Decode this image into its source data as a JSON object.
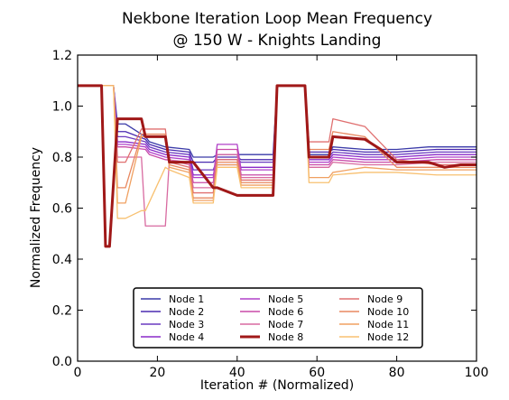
{
  "chart_data": {
    "type": "line",
    "title_line1": "Nekbone Iteration Loop Mean Frequency",
    "title_line2": "@ 150 W - Knights Landing",
    "xlabel": "Iteration # (Normalized)",
    "ylabel": "Normalized Frequency",
    "xlim": [
      0,
      100
    ],
    "ylim": [
      0.0,
      1.2
    ],
    "xticks": [
      0,
      20,
      40,
      60,
      80,
      100
    ],
    "yticks": [
      0.0,
      0.2,
      0.4,
      0.6,
      0.8,
      1.0,
      1.2
    ],
    "ytick_labels": [
      "0.0",
      "0.2",
      "0.4",
      "0.6",
      "0.8",
      "1.0",
      "1.2"
    ],
    "grid": false,
    "legend_position": "lower-center",
    "series": [
      {
        "name": "Node 1",
        "color": "#3a3aa8",
        "x": [
          0,
          9,
          10,
          12,
          17,
          18,
          22,
          28,
          29,
          34,
          35,
          40,
          41,
          45,
          49,
          50,
          57,
          58,
          63,
          64,
          72,
          80,
          88,
          96,
          100
        ],
        "y": [
          1.08,
          1.08,
          0.93,
          0.93,
          0.88,
          0.86,
          0.84,
          0.83,
          0.8,
          0.8,
          0.81,
          0.81,
          0.81,
          0.81,
          0.81,
          1.08,
          1.08,
          0.81,
          0.81,
          0.84,
          0.83,
          0.83,
          0.84,
          0.84,
          0.84
        ]
      },
      {
        "name": "Node 2",
        "color": "#4a2ab0",
        "x": [
          0,
          9,
          10,
          12,
          17,
          18,
          22,
          28,
          29,
          34,
          35,
          40,
          41,
          49,
          50,
          57,
          58,
          63,
          64,
          72,
          80,
          90,
          100
        ],
        "y": [
          1.08,
          1.08,
          0.9,
          0.9,
          0.87,
          0.85,
          0.83,
          0.82,
          0.78,
          0.78,
          0.8,
          0.8,
          0.79,
          0.79,
          1.08,
          1.08,
          0.82,
          0.82,
          0.83,
          0.82,
          0.82,
          0.83,
          0.83
        ]
      },
      {
        "name": "Node 3",
        "color": "#6a3ac0",
        "x": [
          0,
          9,
          10,
          12,
          17,
          18,
          22,
          28,
          29,
          34,
          35,
          40,
          41,
          49,
          50,
          57,
          58,
          63,
          64,
          72,
          80,
          90,
          100
        ],
        "y": [
          1.08,
          1.08,
          0.88,
          0.88,
          0.86,
          0.84,
          0.82,
          0.81,
          0.75,
          0.75,
          0.79,
          0.79,
          0.78,
          0.78,
          1.08,
          1.08,
          0.8,
          0.8,
          0.82,
          0.81,
          0.81,
          0.82,
          0.82
        ]
      },
      {
        "name": "Node 4",
        "color": "#8a2ac8",
        "x": [
          0,
          9,
          10,
          12,
          17,
          18,
          22,
          28,
          29,
          34,
          35,
          40,
          41,
          49,
          50,
          57,
          58,
          63,
          64,
          72,
          80,
          90,
          100
        ],
        "y": [
          1.08,
          1.08,
          0.86,
          0.86,
          0.85,
          0.83,
          0.81,
          0.8,
          0.73,
          0.73,
          0.77,
          0.77,
          0.76,
          0.76,
          1.08,
          1.08,
          0.79,
          0.79,
          0.81,
          0.8,
          0.8,
          0.81,
          0.81
        ]
      },
      {
        "name": "Node 5",
        "color": "#b040c8",
        "x": [
          0,
          9,
          10,
          12,
          17,
          18,
          22,
          28,
          29,
          34,
          35,
          40,
          41,
          49,
          50,
          57,
          58,
          63,
          64,
          72,
          80,
          90,
          100
        ],
        "y": [
          1.08,
          1.08,
          0.85,
          0.85,
          0.84,
          0.82,
          0.8,
          0.79,
          0.72,
          0.72,
          0.85,
          0.85,
          0.75,
          0.75,
          1.08,
          1.08,
          0.78,
          0.78,
          0.8,
          0.79,
          0.79,
          0.8,
          0.8
        ]
      },
      {
        "name": "Node 6",
        "color": "#c84aa8",
        "x": [
          0,
          9,
          10,
          12,
          17,
          18,
          22,
          28,
          29,
          34,
          35,
          40,
          41,
          49,
          50,
          57,
          58,
          63,
          64,
          72,
          80,
          90,
          100
        ],
        "y": [
          1.08,
          1.08,
          0.84,
          0.84,
          0.83,
          0.81,
          0.79,
          0.78,
          0.7,
          0.7,
          0.83,
          0.83,
          0.73,
          0.73,
          1.08,
          1.08,
          0.77,
          0.77,
          0.79,
          0.78,
          0.78,
          0.79,
          0.79
        ]
      },
      {
        "name": "Node 7",
        "color": "#d86aa0",
        "x": [
          0,
          9,
          10,
          12,
          16,
          17,
          22,
          23,
          28,
          29,
          34,
          35,
          40,
          41,
          49,
          50,
          57,
          58,
          63,
          64,
          72,
          80,
          90,
          100
        ],
        "y": [
          1.08,
          1.08,
          0.8,
          0.8,
          0.8,
          0.53,
          0.53,
          0.79,
          0.77,
          0.68,
          0.68,
          0.81,
          0.81,
          0.72,
          0.72,
          1.08,
          1.08,
          0.76,
          0.76,
          0.78,
          0.77,
          0.77,
          0.78,
          0.78
        ]
      },
      {
        "name": "Node 8",
        "color": "#a01818",
        "x": [
          0,
          6,
          7,
          8,
          9,
          10,
          16,
          17,
          18,
          22,
          23,
          28,
          29,
          34,
          35,
          40,
          41,
          49,
          50,
          57,
          58,
          63,
          64,
          72,
          76,
          80,
          88,
          92,
          96,
          100
        ],
        "y": [
          1.08,
          1.08,
          0.45,
          0.45,
          0.7,
          0.95,
          0.95,
          0.88,
          0.88,
          0.88,
          0.78,
          0.78,
          0.78,
          0.68,
          0.68,
          0.65,
          0.65,
          0.65,
          1.08,
          1.08,
          0.8,
          0.8,
          0.88,
          0.87,
          0.83,
          0.78,
          0.78,
          0.76,
          0.77,
          0.77
        ]
      },
      {
        "name": "Node 9",
        "color": "#e07070",
        "x": [
          0,
          9,
          10,
          12,
          16,
          17,
          22,
          23,
          28,
          29,
          34,
          35,
          40,
          41,
          49,
          50,
          57,
          58,
          63,
          64,
          72,
          80,
          90,
          100
        ],
        "y": [
          1.08,
          1.08,
          0.78,
          0.78,
          0.91,
          0.91,
          0.91,
          0.78,
          0.76,
          0.66,
          0.66,
          0.79,
          0.79,
          0.71,
          0.71,
          1.08,
          1.08,
          0.86,
          0.86,
          0.95,
          0.92,
          0.79,
          0.77,
          0.77
        ]
      },
      {
        "name": "Node 10",
        "color": "#e88860",
        "x": [
          0,
          9,
          10,
          12,
          16,
          17,
          22,
          23,
          28,
          29,
          34,
          35,
          40,
          41,
          49,
          50,
          57,
          58,
          63,
          64,
          72,
          80,
          90,
          100
        ],
        "y": [
          1.08,
          1.08,
          0.68,
          0.68,
          0.89,
          0.89,
          0.89,
          0.77,
          0.75,
          0.64,
          0.64,
          0.78,
          0.78,
          0.7,
          0.7,
          1.08,
          1.08,
          0.83,
          0.83,
          0.9,
          0.88,
          0.76,
          0.76,
          0.76
        ]
      },
      {
        "name": "Node 11",
        "color": "#f0a060",
        "x": [
          0,
          9,
          10,
          12,
          16,
          17,
          22,
          23,
          28,
          29,
          34,
          35,
          40,
          41,
          49,
          50,
          57,
          58,
          63,
          64,
          72,
          80,
          90,
          100
        ],
        "y": [
          1.08,
          1.08,
          0.62,
          0.62,
          0.88,
          0.88,
          0.88,
          0.76,
          0.74,
          0.63,
          0.63,
          0.77,
          0.77,
          0.69,
          0.69,
          1.08,
          1.08,
          0.72,
          0.72,
          0.74,
          0.76,
          0.75,
          0.75,
          0.75
        ]
      },
      {
        "name": "Node 12",
        "color": "#f8c070",
        "x": [
          0,
          9,
          10,
          12,
          16,
          17,
          22,
          23,
          28,
          29,
          34,
          35,
          40,
          41,
          49,
          50,
          57,
          58,
          63,
          64,
          72,
          80,
          90,
          100
        ],
        "y": [
          1.08,
          1.08,
          0.56,
          0.56,
          0.59,
          0.59,
          0.76,
          0.75,
          0.72,
          0.62,
          0.62,
          0.76,
          0.76,
          0.68,
          0.68,
          1.08,
          1.08,
          0.7,
          0.7,
          0.73,
          0.74,
          0.74,
          0.73,
          0.73
        ]
      }
    ]
  }
}
